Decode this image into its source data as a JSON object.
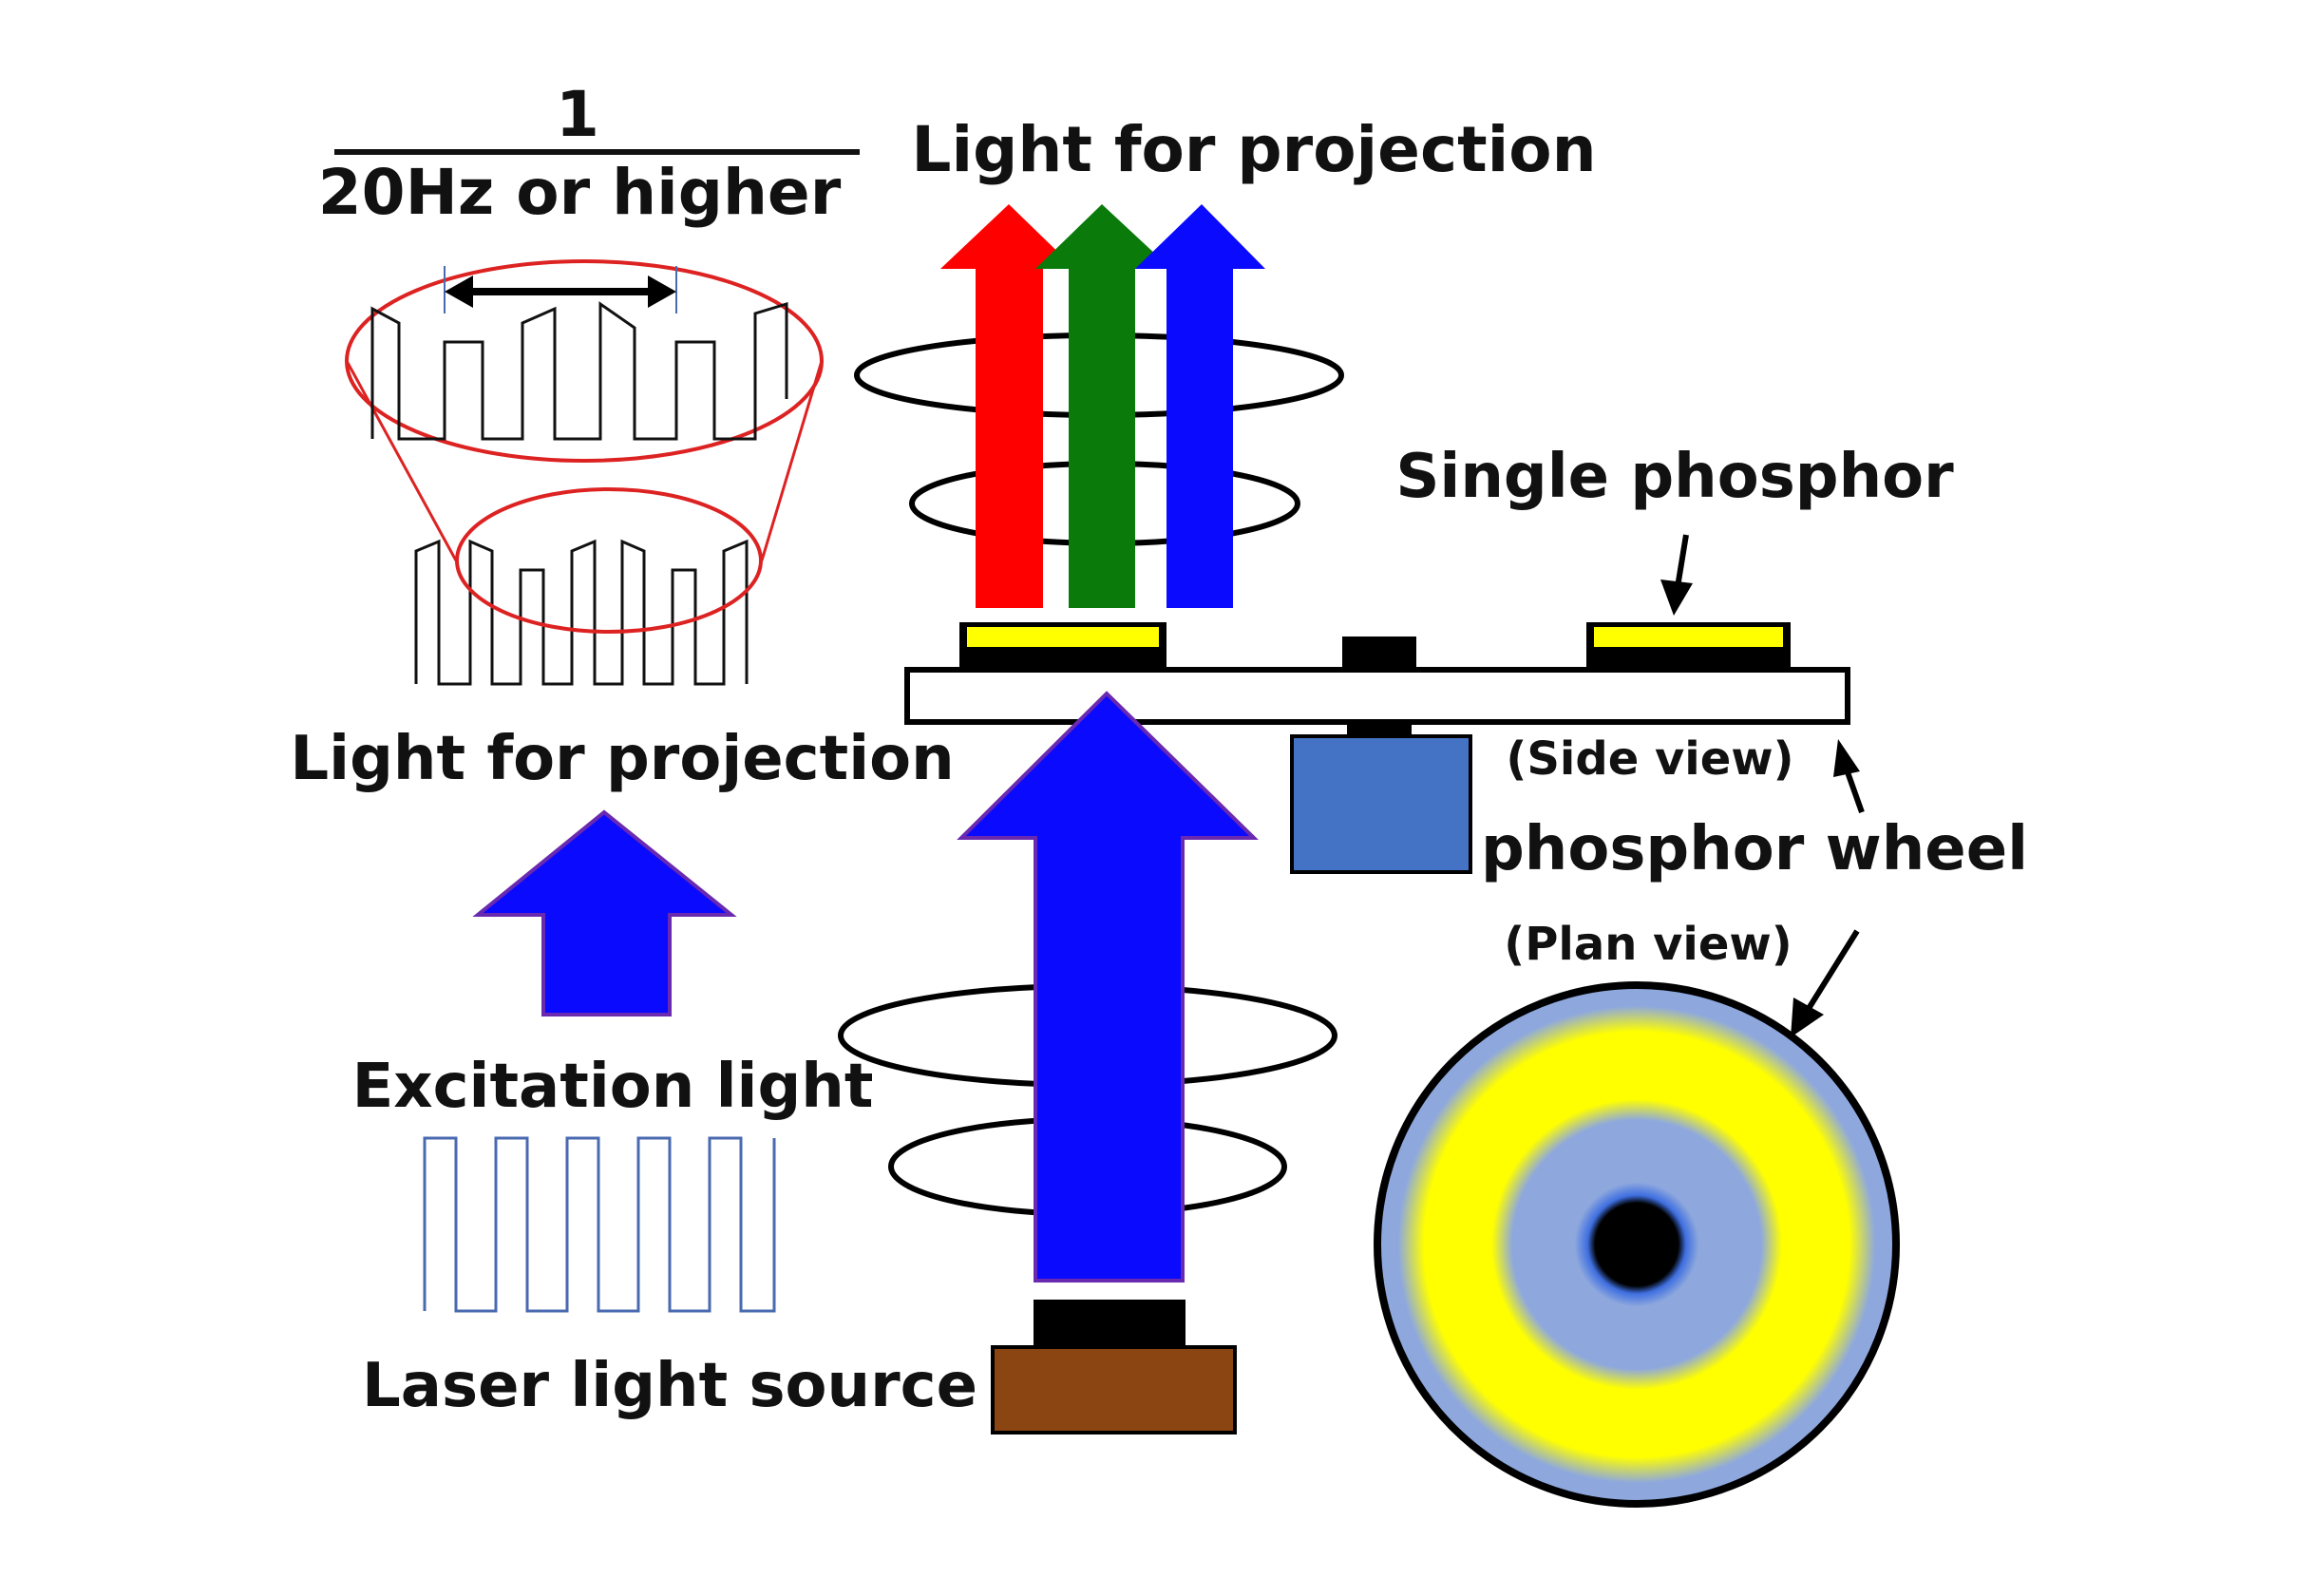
{
  "labels": {
    "fraction_numerator": "1",
    "fraction_denominator": "20Hz or higher",
    "light_for_projection_top": "Light for projection",
    "single_phosphor": "Single phosphor",
    "side_view": "(Side view)",
    "phosphor_wheel": "phosphor wheel",
    "plan_view": "(Plan view)",
    "light_for_projection_left": "Light for projection",
    "excitation_light": "Excitation light",
    "laser_light_source": "Laser light source"
  },
  "colors": {
    "red_light": "#ff0000",
    "green_light": "#0a7a0a",
    "blue_light": "#0a0aff",
    "excitation_arrow_outline": "#6a2ab0",
    "phosphor_yellow": "#ffff00",
    "wheel_blue": "#8ea8de",
    "motor_blue": "#4472c4",
    "laser_base": "#8b4513",
    "magnifier_red": "#dd2222",
    "square_wave_blue": "#4a6ab0"
  },
  "icons": {
    "projection_rgb": "red-green-blue-arrows",
    "excitation": "blue-up-arrow",
    "wheel": "phosphor-wheel-disc",
    "motor": "motor-block"
  }
}
